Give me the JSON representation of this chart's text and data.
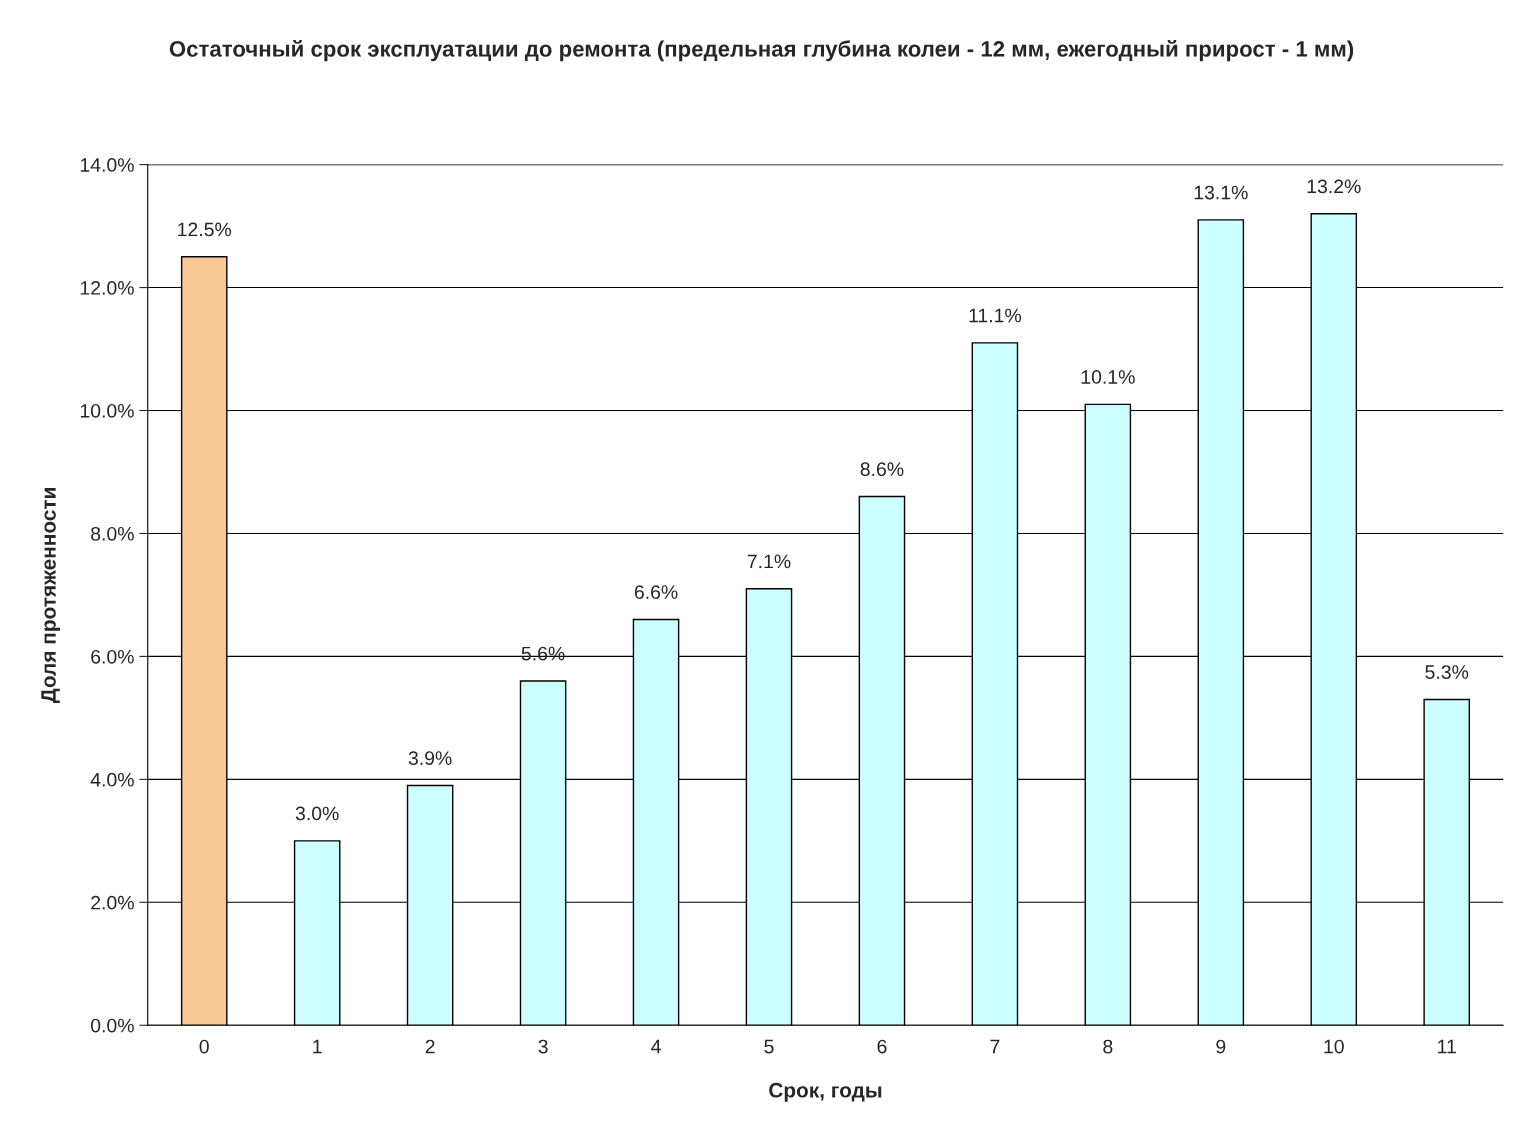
{
  "chart_data": {
    "type": "bar",
    "title": "Остаточный срок эксплуатации до ремонта (предельная глубина колеи - 12 мм, ежегодный прирост - 1 мм)",
    "xlabel": "Срок, годы",
    "ylabel": "Доля протяженности",
    "categories": [
      "0",
      "1",
      "2",
      "3",
      "4",
      "5",
      "6",
      "7",
      "8",
      "9",
      "10",
      "11"
    ],
    "values": [
      12.5,
      3.0,
      3.9,
      5.6,
      6.6,
      7.1,
      8.6,
      11.1,
      10.1,
      13.1,
      13.2,
      5.3
    ],
    "value_labels": [
      "12.5%",
      "3.0%",
      "3.9%",
      "5.6%",
      "6.6%",
      "7.1%",
      "8.6%",
      "11.1%",
      "10.1%",
      "13.1%",
      "13.2%",
      "5.3%"
    ],
    "colors": [
      "#fac896",
      "#ccffff",
      "#ccffff",
      "#ccffff",
      "#ccffff",
      "#ccffff",
      "#ccffff",
      "#ccffff",
      "#ccffff",
      "#ccffff",
      "#ccffff",
      "#ccffff"
    ],
    "ylim": [
      0,
      14
    ],
    "yticks": [
      {
        "value": 0,
        "label": "0.0%"
      },
      {
        "value": 2,
        "label": "2.0%"
      },
      {
        "value": 4,
        "label": "4.0%"
      },
      {
        "value": 6,
        "label": "6.0%"
      },
      {
        "value": 8,
        "label": "8.0%"
      },
      {
        "value": 10,
        "label": "10.0%"
      },
      {
        "value": 12,
        "label": "12.0%"
      },
      {
        "value": 14,
        "label": "14.0%"
      }
    ],
    "grid": "y",
    "legend": false
  }
}
